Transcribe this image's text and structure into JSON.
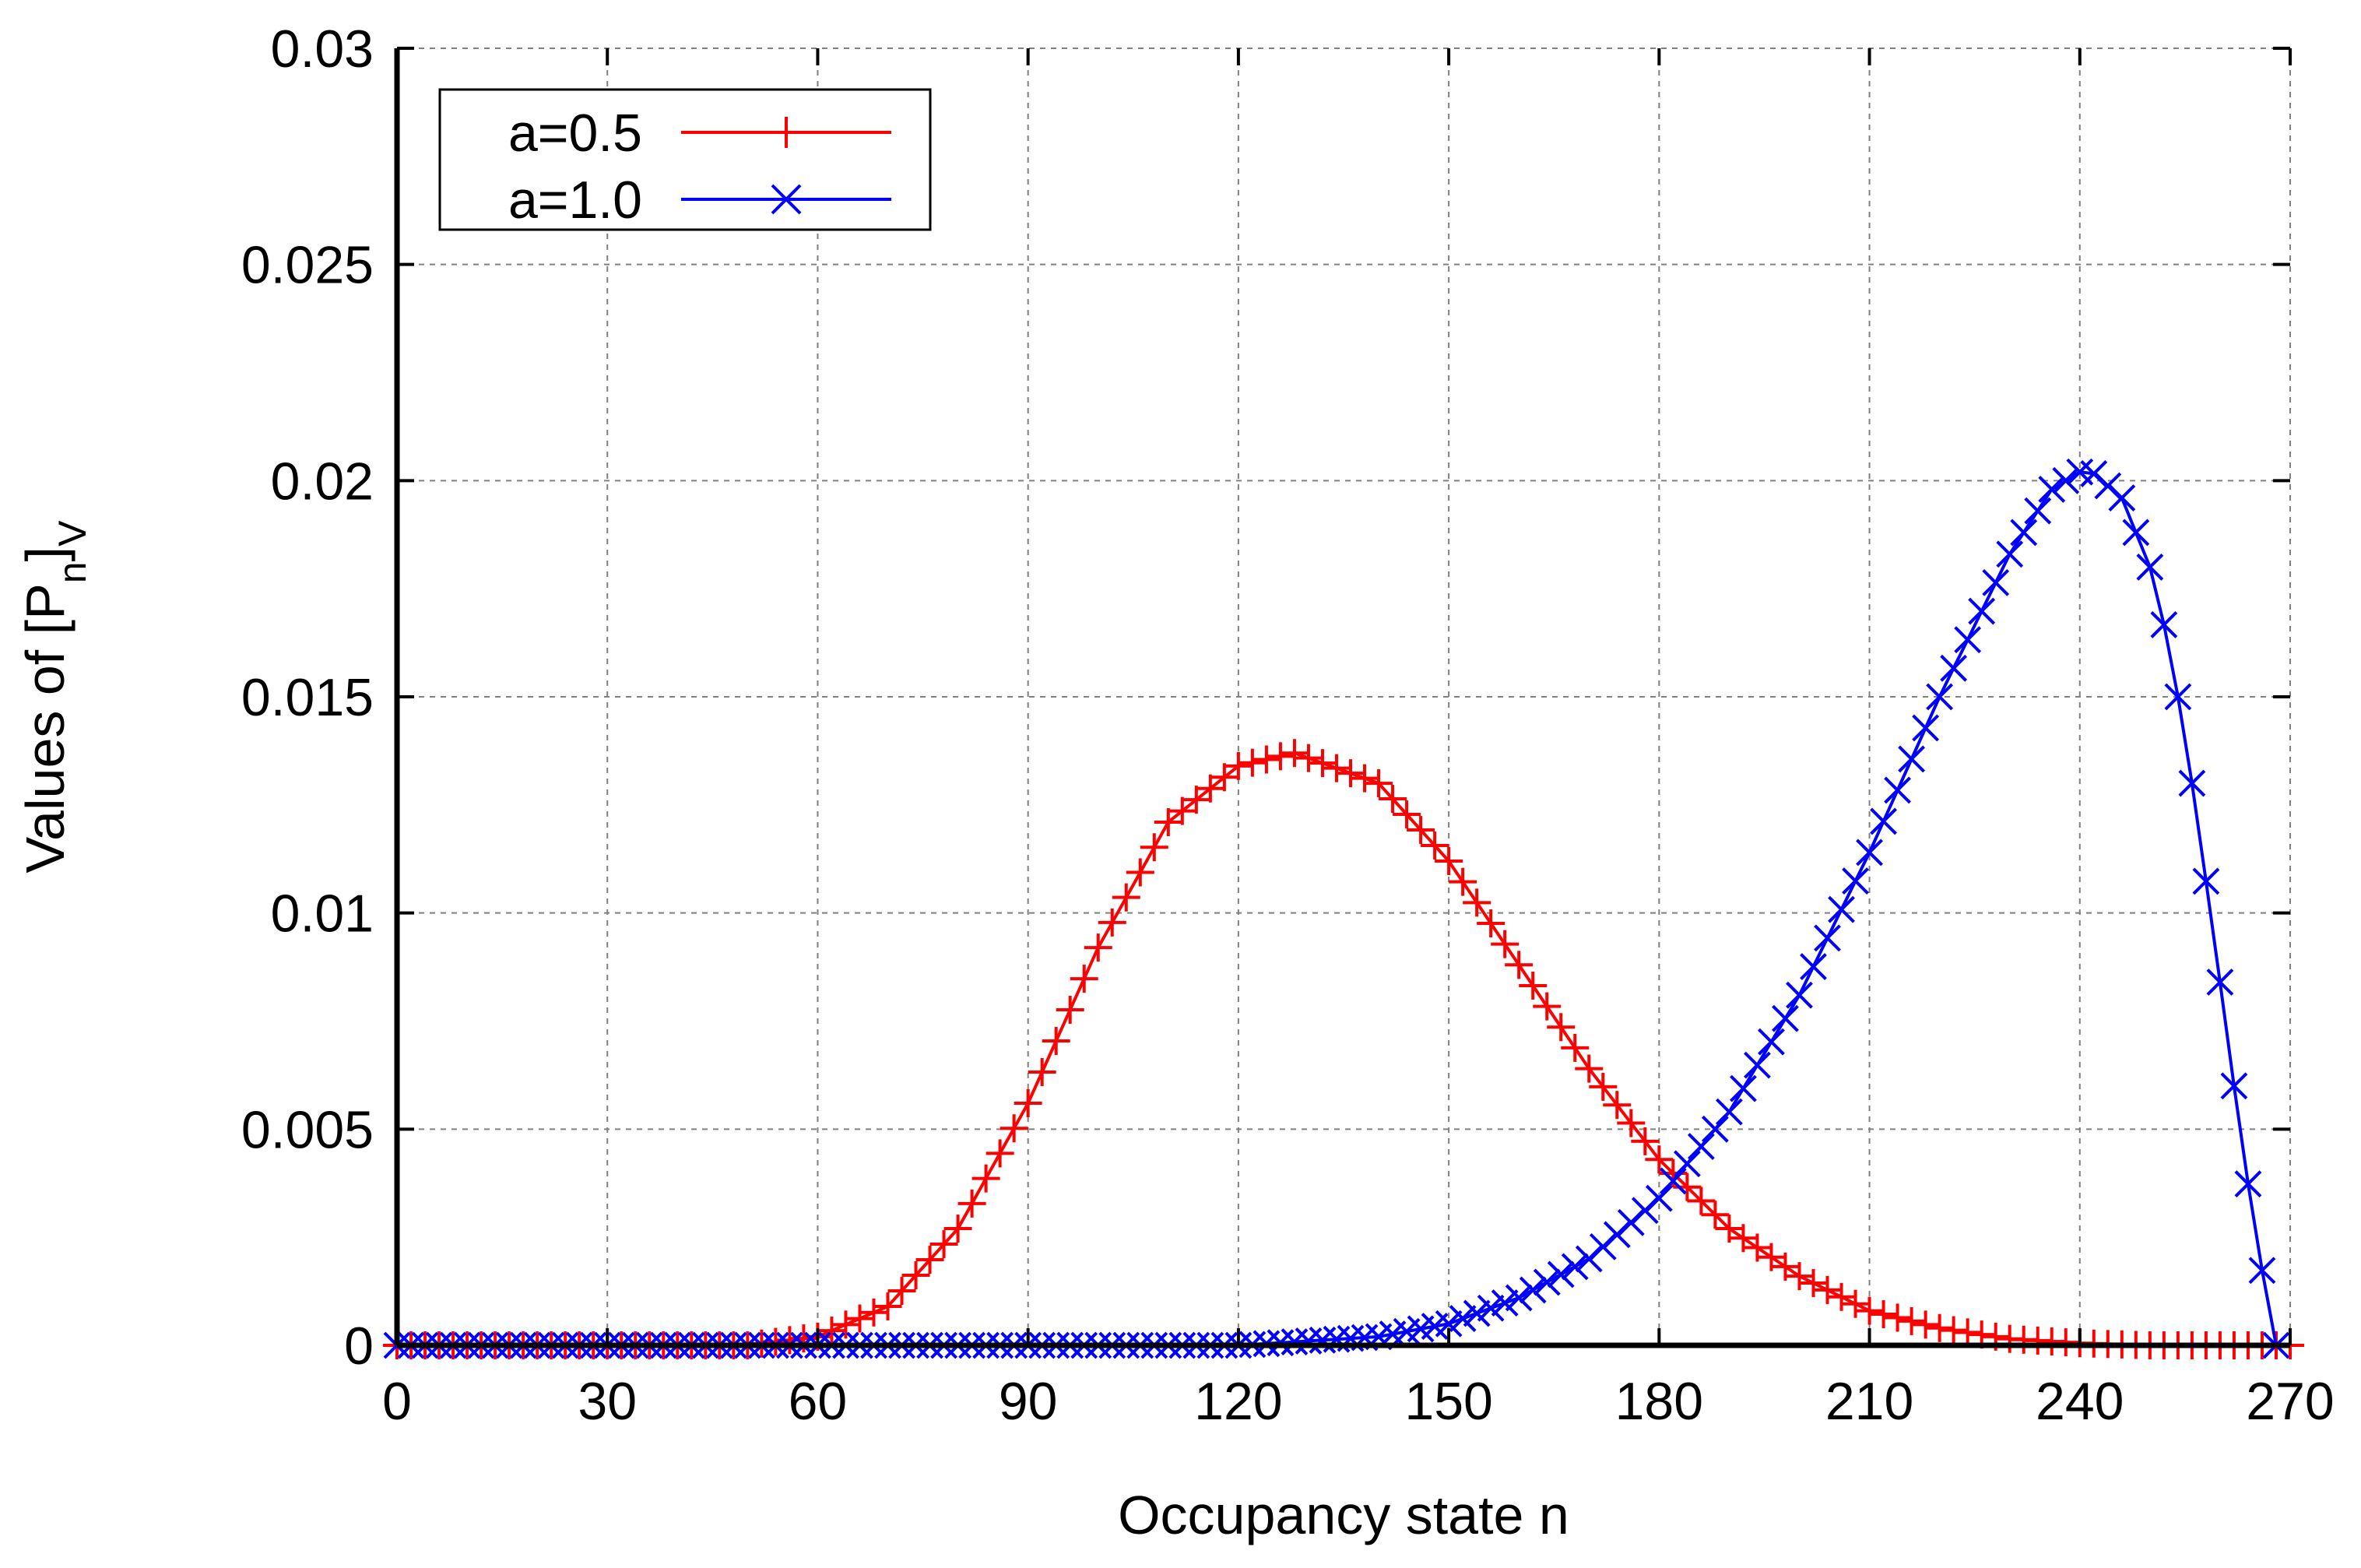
{
  "chart_data": {
    "type": "scatter",
    "xlabel": "Occupancy state n",
    "ylabel": {
      "prefix": "Values of [P",
      "sub1": "n",
      "mid": "]",
      "sub2": "V"
    },
    "xlim": [
      0,
      270
    ],
    "ylim": [
      0,
      0.03
    ],
    "xticks": [
      0,
      30,
      60,
      90,
      120,
      150,
      180,
      210,
      240,
      270
    ],
    "yticks": [
      0,
      0.005,
      0.01,
      0.015,
      0.02,
      0.025,
      0.03
    ],
    "xtick_labels": [
      "0",
      "30",
      "60",
      "90",
      "120",
      "150",
      "180",
      "210",
      "240",
      "270"
    ],
    "ytick_labels": [
      "0",
      "0.005",
      "0.01",
      "0.015",
      "0.02",
      "0.025",
      "0.03"
    ],
    "grid": true,
    "legend_position": "top-left",
    "series": [
      {
        "name": "a=0.5",
        "color": "#ff0000",
        "marker": "plus",
        "x_range": [
          0,
          270
        ],
        "step": 2,
        "y_keypoints": [
          [
            0,
            0
          ],
          [
            50,
            0
          ],
          [
            60,
            0.0002
          ],
          [
            70,
            0.0009
          ],
          [
            80,
            0.0027
          ],
          [
            90,
            0.0056
          ],
          [
            100,
            0.0092
          ],
          [
            110,
            0.0121
          ],
          [
            120,
            0.0134
          ],
          [
            128,
            0.0137
          ],
          [
            140,
            0.013
          ],
          [
            150,
            0.0112
          ],
          [
            160,
            0.0088
          ],
          [
            170,
            0.0064
          ],
          [
            180,
            0.0043
          ],
          [
            190,
            0.0027
          ],
          [
            200,
            0.0016
          ],
          [
            210,
            0.0008
          ],
          [
            220,
            0.0004
          ],
          [
            230,
            0.00015
          ],
          [
            240,
            5e-05
          ],
          [
            250,
            0
          ],
          [
            270,
            0
          ]
        ]
      },
      {
        "name": "a=1.0",
        "color": "#0000ff",
        "marker": "x",
        "x_range": [
          0,
          268
        ],
        "step": 2,
        "y_keypoints": [
          [
            0,
            0
          ],
          [
            120,
            0
          ],
          [
            140,
            0.0002
          ],
          [
            150,
            0.0005
          ],
          [
            160,
            0.0011
          ],
          [
            170,
            0.002
          ],
          [
            180,
            0.0034
          ],
          [
            190,
            0.0054
          ],
          [
            200,
            0.0081
          ],
          [
            210,
            0.0114
          ],
          [
            220,
            0.015
          ],
          [
            230,
            0.0183
          ],
          [
            236,
            0.0198
          ],
          [
            241,
            0.0203
          ],
          [
            246,
            0.0196
          ],
          [
            250,
            0.018
          ],
          [
            253,
            0.016
          ],
          [
            256,
            0.013
          ],
          [
            259,
            0.0096
          ],
          [
            262,
            0.006
          ],
          [
            265,
            0.0026
          ],
          [
            268,
            0
          ]
        ]
      }
    ]
  }
}
